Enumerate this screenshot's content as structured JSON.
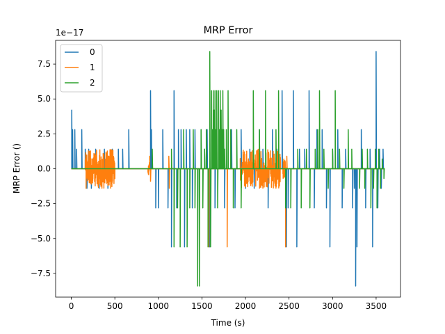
{
  "chart_data": {
    "type": "line",
    "title": "MRP Error",
    "xlabel": "Time (s)",
    "ylabel": "MRP Error ()",
    "y_scale_label": "1e−17",
    "xlim": [
      -180,
      3780
    ],
    "ylim": [
      -9.2,
      9.2
    ],
    "x_ticks": [
      0,
      500,
      1000,
      1500,
      2000,
      2500,
      3000,
      3500
    ],
    "x_tick_labels": [
      "0",
      "500",
      "1000",
      "1500",
      "2000",
      "2500",
      "3000",
      "3500"
    ],
    "y_ticks": [
      -7.5,
      -5.0,
      -2.5,
      0.0,
      2.5,
      5.0,
      7.5
    ],
    "y_tick_labels": [
      "−7.5",
      "−5.0",
      "−2.5",
      "0.0",
      "2.5",
      "5.0",
      "7.5"
    ],
    "legend_position": "top-left",
    "grid": false,
    "series": [
      {
        "name": "0",
        "color": "#1f77b4",
        "spikes": [
          [
            5,
            4.2
          ],
          [
            15,
            2.8
          ],
          [
            40,
            2.8
          ],
          [
            60,
            1.4
          ],
          [
            120,
            2.8
          ],
          [
            160,
            1.4
          ],
          [
            180,
            -1.4
          ],
          [
            200,
            1.4
          ],
          [
            230,
            -1.4
          ],
          [
            280,
            1.4
          ],
          [
            320,
            -1.4
          ],
          [
            380,
            1.4
          ],
          [
            420,
            -1.4
          ],
          [
            470,
            1.4
          ],
          [
            540,
            1.4
          ],
          [
            590,
            1.4
          ],
          [
            660,
            2.8
          ],
          [
            910,
            5.6
          ],
          [
            920,
            2.8
          ],
          [
            970,
            -2.8
          ],
          [
            1000,
            -2.8
          ],
          [
            1050,
            2.8
          ],
          [
            1110,
            -2.8
          ],
          [
            1150,
            -5.6
          ],
          [
            1180,
            5.6
          ],
          [
            1210,
            -2.8
          ],
          [
            1230,
            2.8
          ],
          [
            1260,
            2.8
          ],
          [
            1300,
            -5.6
          ],
          [
            1320,
            2.8
          ],
          [
            1360,
            2.8
          ],
          [
            1390,
            -2.8
          ],
          [
            1420,
            2.8
          ],
          [
            1450,
            -2.8
          ],
          [
            1490,
            2.8
          ],
          [
            1530,
            1.4
          ],
          [
            1560,
            2.8
          ],
          [
            1590,
            -5.6
          ],
          [
            1620,
            2.8
          ],
          [
            1650,
            -2.8
          ],
          [
            1700,
            2.8
          ],
          [
            1760,
            -2.8
          ],
          [
            1840,
            2.8
          ],
          [
            1880,
            -2.8
          ],
          [
            1950,
            2.8
          ],
          [
            2000,
            -1.4
          ],
          [
            2050,
            1.4
          ],
          [
            2100,
            -1.4
          ],
          [
            2160,
            2.8
          ],
          [
            2200,
            1.4
          ],
          [
            2260,
            -2.8
          ],
          [
            2310,
            2.8
          ],
          [
            2360,
            1.4
          ],
          [
            2420,
            5.6
          ],
          [
            2470,
            -5.6
          ],
          [
            2490,
            -2.8
          ],
          [
            2550,
            5.6
          ],
          [
            2590,
            -5.6
          ],
          [
            2620,
            1.4
          ],
          [
            2680,
            1.4
          ],
          [
            2730,
            5.6
          ],
          [
            2790,
            -2.8
          ],
          [
            2820,
            2.8
          ],
          [
            2880,
            2.8
          ],
          [
            2930,
            -2.8
          ],
          [
            2970,
            -5.6
          ],
          [
            3000,
            1.4
          ],
          [
            3060,
            2.8
          ],
          [
            3110,
            -2.8
          ],
          [
            3150,
            1.4
          ],
          [
            3230,
            -2.8
          ],
          [
            3250,
            -1.4
          ],
          [
            3265,
            -8.4
          ],
          [
            3280,
            -5.6
          ],
          [
            3330,
            2.8
          ],
          [
            3380,
            -2.8
          ],
          [
            3430,
            1.4
          ],
          [
            3460,
            -5.6
          ],
          [
            3500,
            8.4
          ],
          [
            3520,
            -2.8
          ],
          [
            3540,
            1.4
          ],
          [
            3560,
            -1.4
          ],
          [
            3580,
            1.4
          ]
        ]
      },
      {
        "name": "1",
        "color": "#ff7f0e",
        "bands": [
          [
            160,
            500,
            1.4
          ],
          [
            880,
            900,
            0.5
          ],
          [
            1940,
            2400,
            1.4
          ],
          [
            2430,
            2460,
            0.8
          ]
        ],
        "spikes": [
          [
            170,
            -1.4
          ],
          [
            900,
            0.9
          ],
          [
            910,
            -0.9
          ],
          [
            1120,
            0.9
          ],
          [
            1125,
            -1.4
          ],
          [
            1580,
            -5.6
          ],
          [
            1790,
            -5.6
          ],
          [
            2460,
            -5.6
          ],
          [
            2475,
            0.9
          ]
        ]
      },
      {
        "name": "2",
        "color": "#2ca02c",
        "spikes": [
          [
            930,
            1.4
          ],
          [
            1150,
            1.4
          ],
          [
            1180,
            -5.6
          ],
          [
            1220,
            -2.8
          ],
          [
            1250,
            -5.6
          ],
          [
            1290,
            2.8
          ],
          [
            1330,
            -5.6
          ],
          [
            1360,
            -2.8
          ],
          [
            1400,
            2.8
          ],
          [
            1420,
            -2.8
          ],
          [
            1450,
            -8.4
          ],
          [
            1470,
            -8.4
          ],
          [
            1490,
            2.8
          ],
          [
            1510,
            -2.8
          ],
          [
            1530,
            1.4
          ],
          [
            1550,
            2.8
          ],
          [
            1570,
            -5.6
          ],
          [
            1590,
            8.4
          ],
          [
            1600,
            -5.6
          ],
          [
            1610,
            5.6
          ],
          [
            1620,
            2.8
          ],
          [
            1630,
            5.6
          ],
          [
            1640,
            4.2
          ],
          [
            1650,
            5.6
          ],
          [
            1660,
            2.8
          ],
          [
            1670,
            5.6
          ],
          [
            1680,
            -2.8
          ],
          [
            1690,
            5.6
          ],
          [
            1700,
            2.8
          ],
          [
            1710,
            5.6
          ],
          [
            1720,
            4.2
          ],
          [
            1730,
            2.8
          ],
          [
            1740,
            5.6
          ],
          [
            1750,
            2.8
          ],
          [
            1760,
            1.4
          ],
          [
            1780,
            2.8
          ],
          [
            1800,
            5.6
          ],
          [
            1830,
            2.8
          ],
          [
            1860,
            -2.8
          ],
          [
            1900,
            2.8
          ],
          [
            1950,
            -2.8
          ],
          [
            2090,
            5.6
          ],
          [
            2160,
            2.8
          ],
          [
            2230,
            5.6
          ],
          [
            2350,
            2.8
          ],
          [
            2380,
            5.6
          ],
          [
            2460,
            -2.8
          ],
          [
            2520,
            -2.8
          ],
          [
            2600,
            1.4
          ],
          [
            2640,
            -2.8
          ],
          [
            2700,
            1.4
          ],
          [
            2740,
            -2.8
          ],
          [
            2800,
            1.4
          ],
          [
            2830,
            2.8
          ],
          [
            2850,
            5.6
          ],
          [
            2900,
            1.4
          ],
          [
            2950,
            -1.4
          ],
          [
            3000,
            1.4
          ],
          [
            3030,
            5.6
          ],
          [
            3080,
            1.4
          ],
          [
            3130,
            -1.4
          ],
          [
            3180,
            2.8
          ],
          [
            3220,
            1.4
          ],
          [
            3310,
            -1.4
          ],
          [
            3340,
            1.4
          ],
          [
            3370,
            -1.4
          ],
          [
            3400,
            1.4
          ],
          [
            3440,
            -2.8
          ],
          [
            3470,
            -1.4
          ],
          [
            3490,
            1.4
          ],
          [
            3510,
            -2.8
          ],
          [
            3530,
            1.4
          ],
          [
            3550,
            -1.4
          ],
          [
            3570,
            0.7
          ],
          [
            3590,
            -0.7
          ]
        ]
      }
    ]
  }
}
